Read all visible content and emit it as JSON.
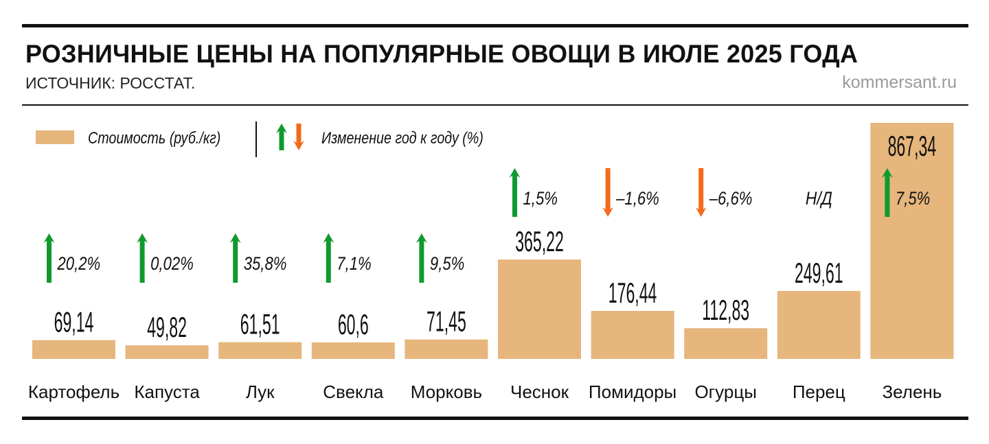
{
  "header": {
    "title": "РОЗНИЧНЫЕ ЦЕНЫ НА ПОПУЛЯРНЫЕ ОВОЩИ В ИЮЛЕ 2025 ГОДА",
    "source": "ИСТОЧНИК: РОССТАТ.",
    "site": "kommersant.ru"
  },
  "colors": {
    "bar": "#E6B67D",
    "up": "#109A2E",
    "down": "#F26A1B",
    "text": "#111111"
  },
  "chart_data": {
    "type": "bar",
    "title": "РОЗНИЧНЫЕ ЦЕНЫ НА ПОПУЛЯРНЫЕ ОВОЩИ В ИЮЛЕ 2025 ГОДА",
    "legend": {
      "bar_label": "Стоимость (руб./кг)",
      "change_label": "Изменение год к году (%)",
      "placement": "top-left"
    },
    "categories": [
      "Картофель",
      "Капуста",
      "Лук",
      "Свекла",
      "Морковь",
      "Чеснок",
      "Помидоры",
      "Огурцы",
      "Перец",
      "Зелень"
    ],
    "values": [
      69.14,
      49.82,
      61.51,
      60.6,
      71.45,
      365.22,
      176.44,
      112.83,
      249.61,
      867.34
    ],
    "value_labels": [
      "69,14",
      "49,82",
      "61,51",
      "60,6",
      "71,45",
      "365,22",
      "176,44",
      "112,83",
      "249,61",
      "867,34"
    ],
    "changes": [
      {
        "label": "20,2%",
        "dir": "up"
      },
      {
        "label": "0,02%",
        "dir": "up"
      },
      {
        "label": "35,8%",
        "dir": "up"
      },
      {
        "label": "7,1%",
        "dir": "up"
      },
      {
        "label": "9,5%",
        "dir": "up"
      },
      {
        "label": "1,5%",
        "dir": "up"
      },
      {
        "label": "–1,6%",
        "dir": "down"
      },
      {
        "label": "–6,6%",
        "dir": "down"
      },
      {
        "label": "Н/Д",
        "dir": "none"
      },
      {
        "label": "7,5%",
        "dir": "up"
      }
    ],
    "ylim": [
      0,
      867.34
    ],
    "grid": false
  }
}
